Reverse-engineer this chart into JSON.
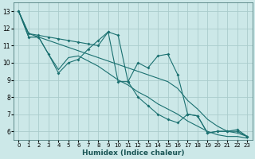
{
  "title": "",
  "xlabel": "Humidex (Indice chaleur)",
  "ylabel": "",
  "bg_color": "#cce8e8",
  "grid_color": "#aacccc",
  "line_color": "#1a7070",
  "xlim": [
    -0.5,
    23.5
  ],
  "ylim": [
    5.5,
    13.5
  ],
  "xticks": [
    0,
    1,
    2,
    3,
    4,
    5,
    6,
    7,
    8,
    9,
    10,
    11,
    12,
    13,
    14,
    15,
    16,
    17,
    18,
    19,
    20,
    21,
    22,
    23
  ],
  "yticks": [
    6,
    7,
    8,
    9,
    10,
    11,
    12,
    13
  ],
  "series": [
    [
      13.0,
      11.5,
      11.5,
      10.5,
      9.4,
      10.0,
      10.2,
      10.8,
      11.3,
      11.8,
      8.9,
      8.9,
      10.0,
      9.7,
      10.4,
      10.5,
      9.3,
      7.0,
      6.9,
      5.9,
      6.0,
      6.0,
      6.0,
      5.7
    ],
    [
      13.0,
      11.5,
      11.5,
      10.5,
      9.6,
      10.3,
      10.4,
      10.1,
      9.8,
      9.4,
      9.0,
      8.7,
      8.3,
      8.0,
      7.6,
      7.3,
      7.0,
      6.6,
      6.3,
      6.0,
      5.8,
      5.7,
      5.7,
      5.6
    ],
    [
      13.0,
      11.7,
      11.5,
      11.3,
      11.1,
      10.9,
      10.7,
      10.5,
      10.3,
      10.1,
      9.9,
      9.7,
      9.5,
      9.3,
      9.1,
      8.9,
      8.5,
      7.8,
      7.3,
      6.7,
      6.3,
      6.0,
      5.9,
      5.7
    ],
    [
      13.0,
      11.7,
      11.6,
      11.5,
      11.4,
      11.3,
      11.2,
      11.1,
      11.0,
      11.8,
      11.6,
      8.9,
      8.0,
      7.5,
      7.0,
      6.7,
      6.5,
      7.0,
      6.9,
      5.9,
      6.0,
      6.0,
      6.1,
      5.7
    ]
  ]
}
